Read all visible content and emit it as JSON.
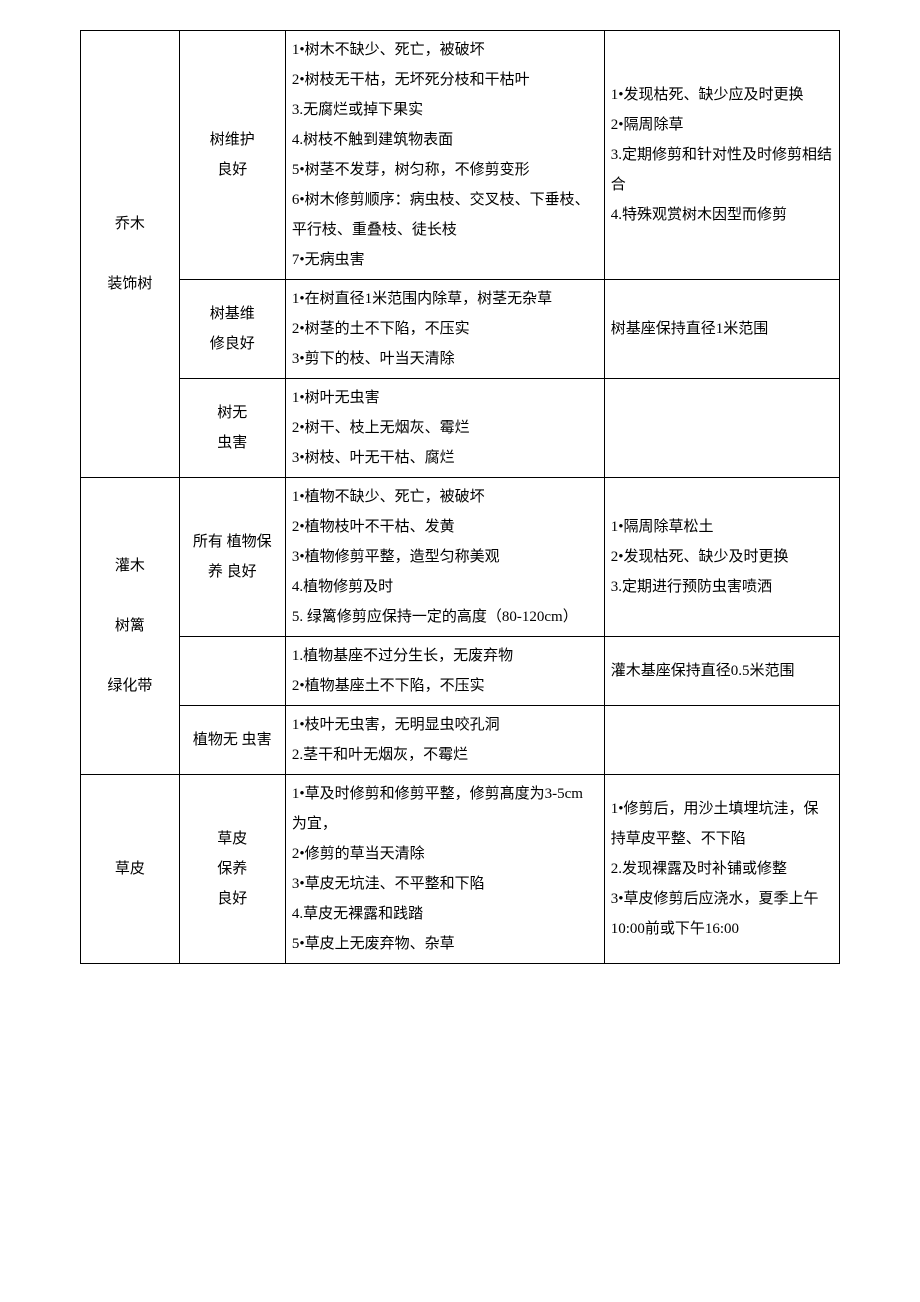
{
  "table": {
    "rows": [
      {
        "c1": "乔木\n\n装饰树",
        "c1_rowspan": 3,
        "c2": "树维护\n良好",
        "c3": "1•树木不缺少、死亡，被破坏\n2•树枝无干枯，无坏死分枝和干枯叶\n3.无腐烂或掉下果实\n4.树枝不触到建筑物表面\n5•树茎不发芽，树匀称，不修剪变形\n6•树木修剪顺序：病虫枝、交叉枝、下垂枝、平行枝、重叠枝、徒长枝\n7•无病虫害",
        "c4": "1•发现枯死、缺少应及时更换\n2•隔周除草\n3.定期修剪和针对性及时修剪相结合\n4.特殊观赏树木因型而修剪"
      },
      {
        "c2": "树基维\n修良好",
        "c3": "1•在树直径1米范围内除草，树茎无杂草\n2•树茎的土不下陷，不压实\n3•剪下的枝、叶当天清除",
        "c4": "树基座保持直径1米范围"
      },
      {
        "c2": "树无\n虫害",
        "c3": "1•树叶无虫害\n2•树干、枝上无烟灰、霉烂\n3•树枝、叶无干枯、腐烂",
        "c4": ""
      },
      {
        "c1": "灌木\n\n树篱\n\n绿化带",
        "c1_rowspan": 3,
        "c2": "所有 植物保养 良好",
        "c3": "1•植物不缺少、死亡，被破坏\n2•植物枝叶不干枯、发黄\n3•植物修剪平整，造型匀称美观\n4.植物修剪及时\n5. 绿篱修剪应保持一定的高度（80-120cm）",
        "c4": "1•隔周除草松土\n2•发现枯死、缺少及时更换\n3.定期进行预防虫害喷洒"
      },
      {
        "c2": "",
        "c3": "1.植物基座不过分生长，无废弃物\n2•植物基座土不下陷，不压实",
        "c4": "灌木基座保持直径0.5米范围"
      },
      {
        "c2": "植物无 虫害",
        "c3": "1•枝叶无虫害，无明显虫咬孔洞\n2.茎干和叶无烟灰，不霉烂",
        "c4": ""
      },
      {
        "c1": "草皮",
        "c1_rowspan": 1,
        "c2": "草皮\n保养\n良好",
        "c3": "1•草及时修剪和修剪平整，修剪髙度为3-5cm为宜，\n2•修剪的草当天清除\n3•草皮无坑洼、不平整和下陷\n4.草皮无裸露和践踏\n5•草皮上无废弃物、杂草",
        "c4": "1•修剪后，用沙土填埋坑洼，保持草皮平整、不下陷\n2.发现裸露及时补铺或修整\n3•草皮修剪后应浇水，夏季上午10:00前或下午16:00"
      }
    ]
  }
}
